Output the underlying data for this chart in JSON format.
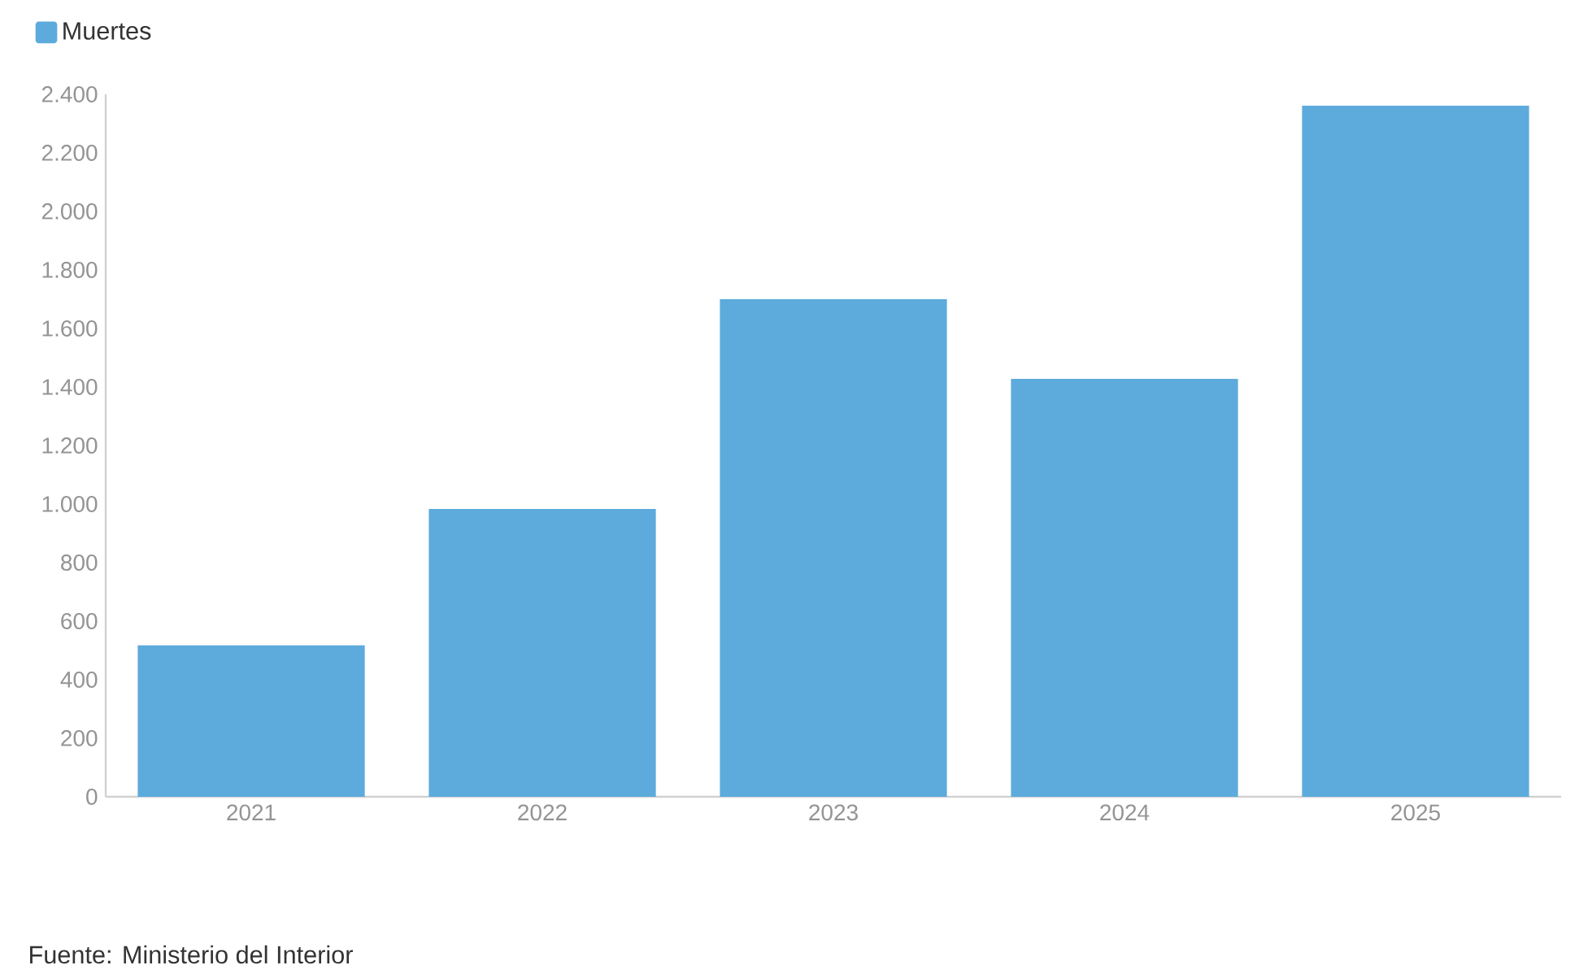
{
  "chart_data": {
    "type": "bar",
    "categories": [
      "2021",
      "2022",
      "2023",
      "2024",
      "2025"
    ],
    "series": [
      {
        "name": "Muertes",
        "color": "#5dabdc",
        "values": [
          517,
          983,
          1700,
          1428,
          2361
        ]
      }
    ],
    "ylim": [
      0,
      2400
    ],
    "yticks": [
      {
        "value": 0,
        "label": "0"
      },
      {
        "value": 200,
        "label": "200"
      },
      {
        "value": 400,
        "label": "400"
      },
      {
        "value": 600,
        "label": "600"
      },
      {
        "value": 800,
        "label": "800"
      },
      {
        "value": 1000,
        "label": "1.000"
      },
      {
        "value": 1200,
        "label": "1.200"
      },
      {
        "value": 1400,
        "label": "1.400"
      },
      {
        "value": 1600,
        "label": "1.600"
      },
      {
        "value": 1800,
        "label": "1.800"
      },
      {
        "value": 2000,
        "label": "2.000"
      },
      {
        "value": 2200,
        "label": "2.200"
      },
      {
        "value": 2400,
        "label": "2.400"
      }
    ],
    "legend": "top left",
    "annotations": [
      "Fuente: Ministerio del Interior"
    ]
  }
}
